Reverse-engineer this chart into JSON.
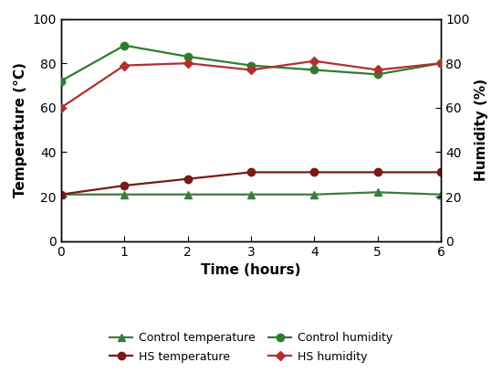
{
  "time": [
    0,
    1,
    2,
    3,
    4,
    5,
    6
  ],
  "control_temperature": [
    21,
    21,
    21,
    21,
    21,
    22,
    21
  ],
  "hs_temperature": [
    21,
    25,
    28,
    31,
    31,
    31,
    31
  ],
  "control_humidity": [
    72,
    88,
    83,
    79,
    77,
    75,
    80
  ],
  "hs_humidity": [
    60,
    79,
    80,
    77,
    81,
    77,
    80
  ],
  "xlim": [
    0,
    6
  ],
  "ylim_left": [
    0,
    100
  ],
  "ylim_right": [
    0,
    100
  ],
  "yticks": [
    0,
    20,
    40,
    60,
    80,
    100
  ],
  "xticks": [
    0,
    1,
    2,
    3,
    4,
    5,
    6
  ],
  "xlabel": "Time (hours)",
  "ylabel_left": "Temperature (°C)",
  "ylabel_right": "Humidity (%)",
  "control_temp_color": "#3a7d3a",
  "hs_temp_color": "#7b1818",
  "control_hum_color": "#2e7d2e",
  "hs_hum_color": "#b03030",
  "legend_labels": [
    "Control temperature",
    "HS temperature",
    "Control humidity",
    "HS humidity"
  ],
  "linewidth": 1.6,
  "markersize": 6,
  "tick_fontsize": 10,
  "axis_label_fontsize": 11,
  "legend_fontsize": 9
}
